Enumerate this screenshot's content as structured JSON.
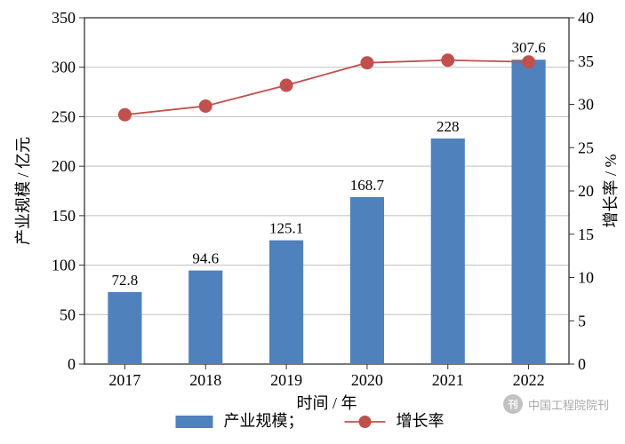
{
  "chart": {
    "type": "bar+line",
    "background_color": "#ffffff",
    "plot_border_color": "#333333",
    "grid_color": "#bfbfbf",
    "categories": [
      "2017",
      "2018",
      "2019",
      "2020",
      "2021",
      "2022"
    ],
    "bars": {
      "label": "产业规模；",
      "values": [
        72.8,
        94.6,
        125.1,
        168.7,
        228,
        307.6
      ],
      "color": "#4f81bd",
      "width": 0.42
    },
    "line": {
      "label": "增长率",
      "values": [
        28.8,
        29.8,
        32.2,
        34.8,
        35.1,
        34.9
      ],
      "color": "#c0504d",
      "marker": "circle",
      "marker_size": 7,
      "line_width": 1.8
    },
    "x_axis": {
      "title": "时间 / 年",
      "tick_labels": [
        "2017",
        "2018",
        "2019",
        "2020",
        "2021",
        "2022"
      ],
      "title_fontsize": 18,
      "tick_fontsize": 18
    },
    "y1_axis": {
      "title": "产业规模 / 亿元",
      "min": 0,
      "max": 350,
      "tick_step": 50,
      "title_fontsize": 18,
      "tick_fontsize": 18
    },
    "y2_axis": {
      "title": "增长率 / %",
      "min": 0,
      "max": 40,
      "tick_step": 5,
      "title_fontsize": 18,
      "tick_fontsize": 18
    },
    "data_label_fontsize": 17,
    "legend_fontsize": 18,
    "legend_gap": 60
  },
  "watermark": {
    "text": "中国工程院院刊",
    "icon_glyph": "刊"
  }
}
